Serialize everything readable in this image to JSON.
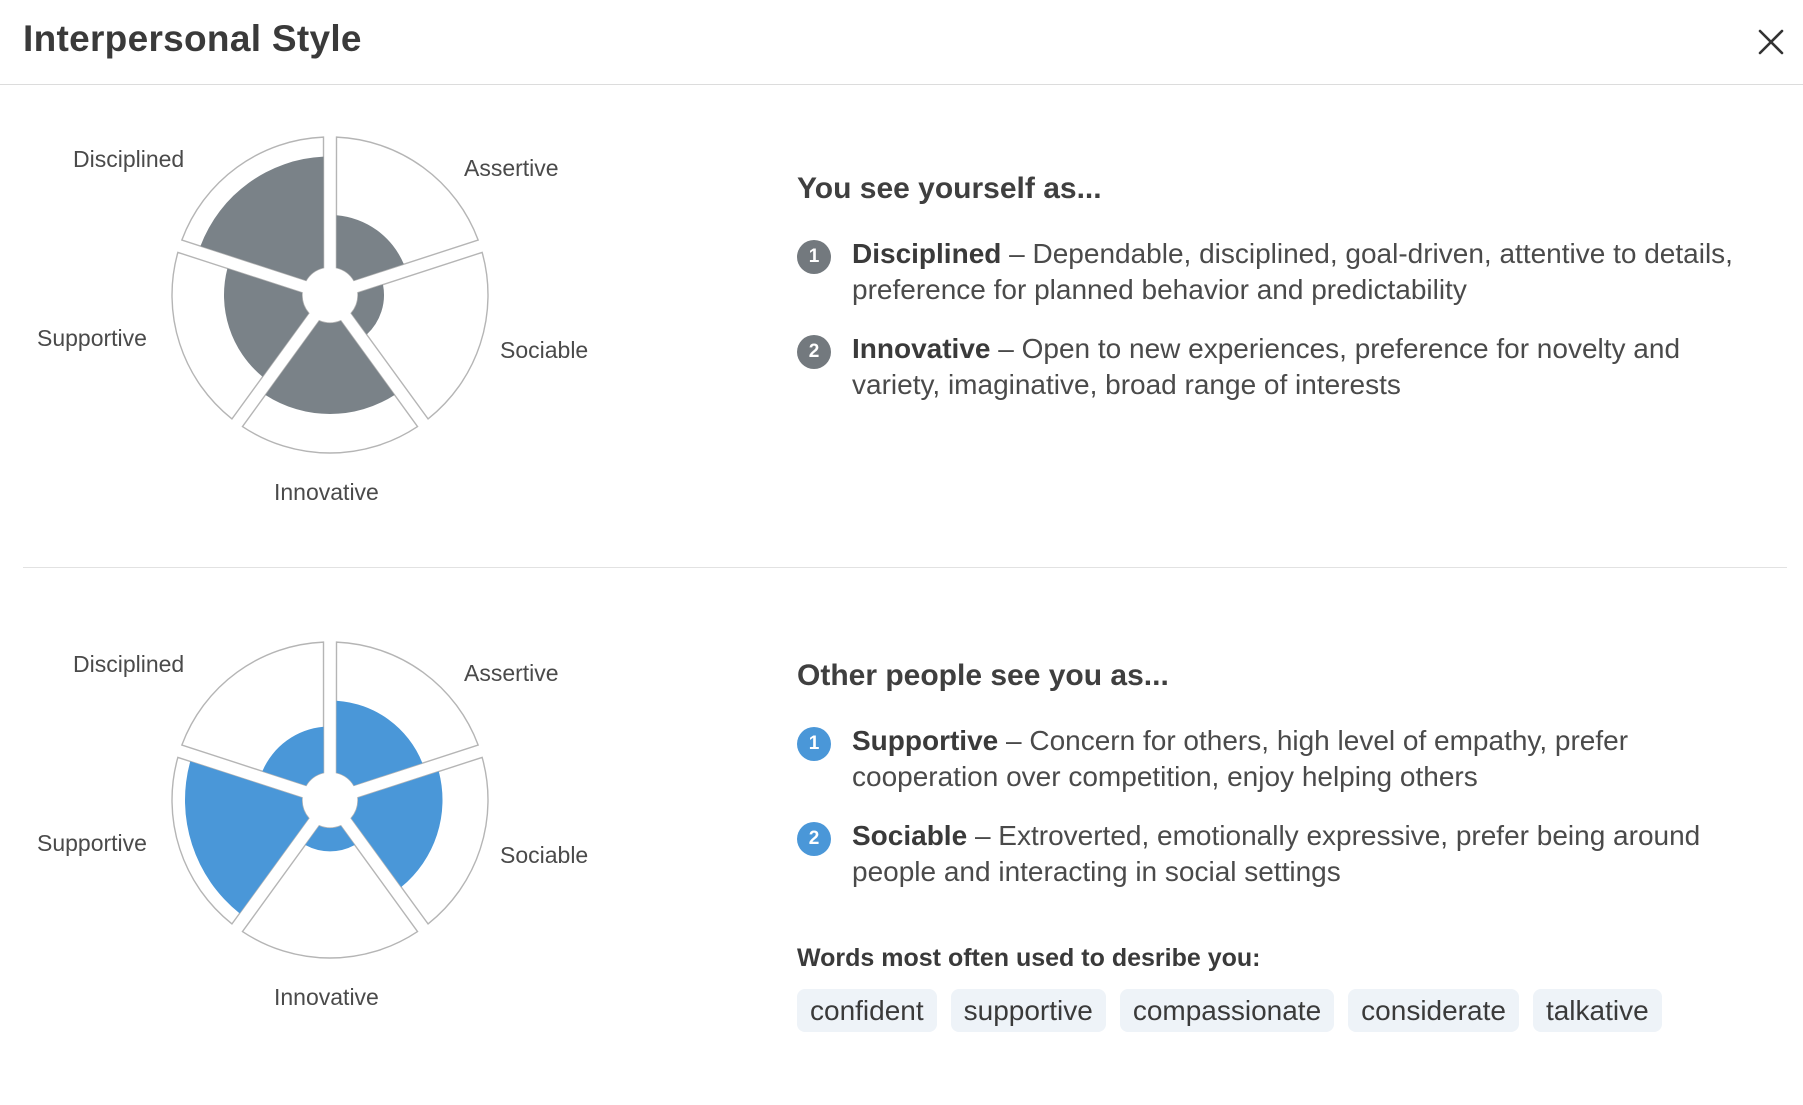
{
  "header": {
    "title": "Interpersonal Style"
  },
  "self_view": {
    "title": "You see yourself as...",
    "chart_labels": {
      "assertive": "Assertive",
      "sociable": "Sociable",
      "innovative": "Innovative",
      "supportive": "Supportive",
      "disciplined": "Disciplined"
    },
    "chart_data": {
      "type": "radial",
      "categories": [
        "Assertive",
        "Sociable",
        "Innovative",
        "Supportive",
        "Disciplined"
      ],
      "values": [
        0.4,
        0.2,
        0.7,
        0.6,
        0.85
      ],
      "color": "#7a8288"
    },
    "traits": [
      {
        "rank": "1",
        "name": "Disciplined",
        "desc": " – Dependable, disciplined, goal-driven, attentive to details, preference for planned behavior and predictability"
      },
      {
        "rank": "2",
        "name": "Innovative",
        "desc": " – Open to new experiences, preference for novelty and variety, imaginative, broad range of interests"
      }
    ],
    "badge_color": "#73797e"
  },
  "other_view": {
    "title": "Other people see you as...",
    "chart_labels": {
      "assertive": "Assertive",
      "sociable": "Sociable",
      "innovative": "Innovative",
      "supportive": "Supportive",
      "disciplined": "Disciplined"
    },
    "chart_data": {
      "type": "radial",
      "categories": [
        "Assertive",
        "Sociable",
        "Innovative",
        "Supportive",
        "Disciplined"
      ],
      "values": [
        0.55,
        0.65,
        0.18,
        0.9,
        0.35
      ],
      "color": "#4a97d8"
    },
    "traits": [
      {
        "rank": "1",
        "name": "Supportive",
        "desc": " – Concern for others, high level of empathy, prefer cooperation over competition, enjoy helping others"
      },
      {
        "rank": "2",
        "name": "Sociable",
        "desc": " – Extroverted, emotionally expressive, prefer being around people and interacting in social settings"
      }
    ],
    "badge_color": "#4a97d8",
    "words_label": "Words most often used to desribe you:",
    "words": [
      "confident",
      "supportive",
      "compassionate",
      "considerate",
      "talkative"
    ]
  }
}
